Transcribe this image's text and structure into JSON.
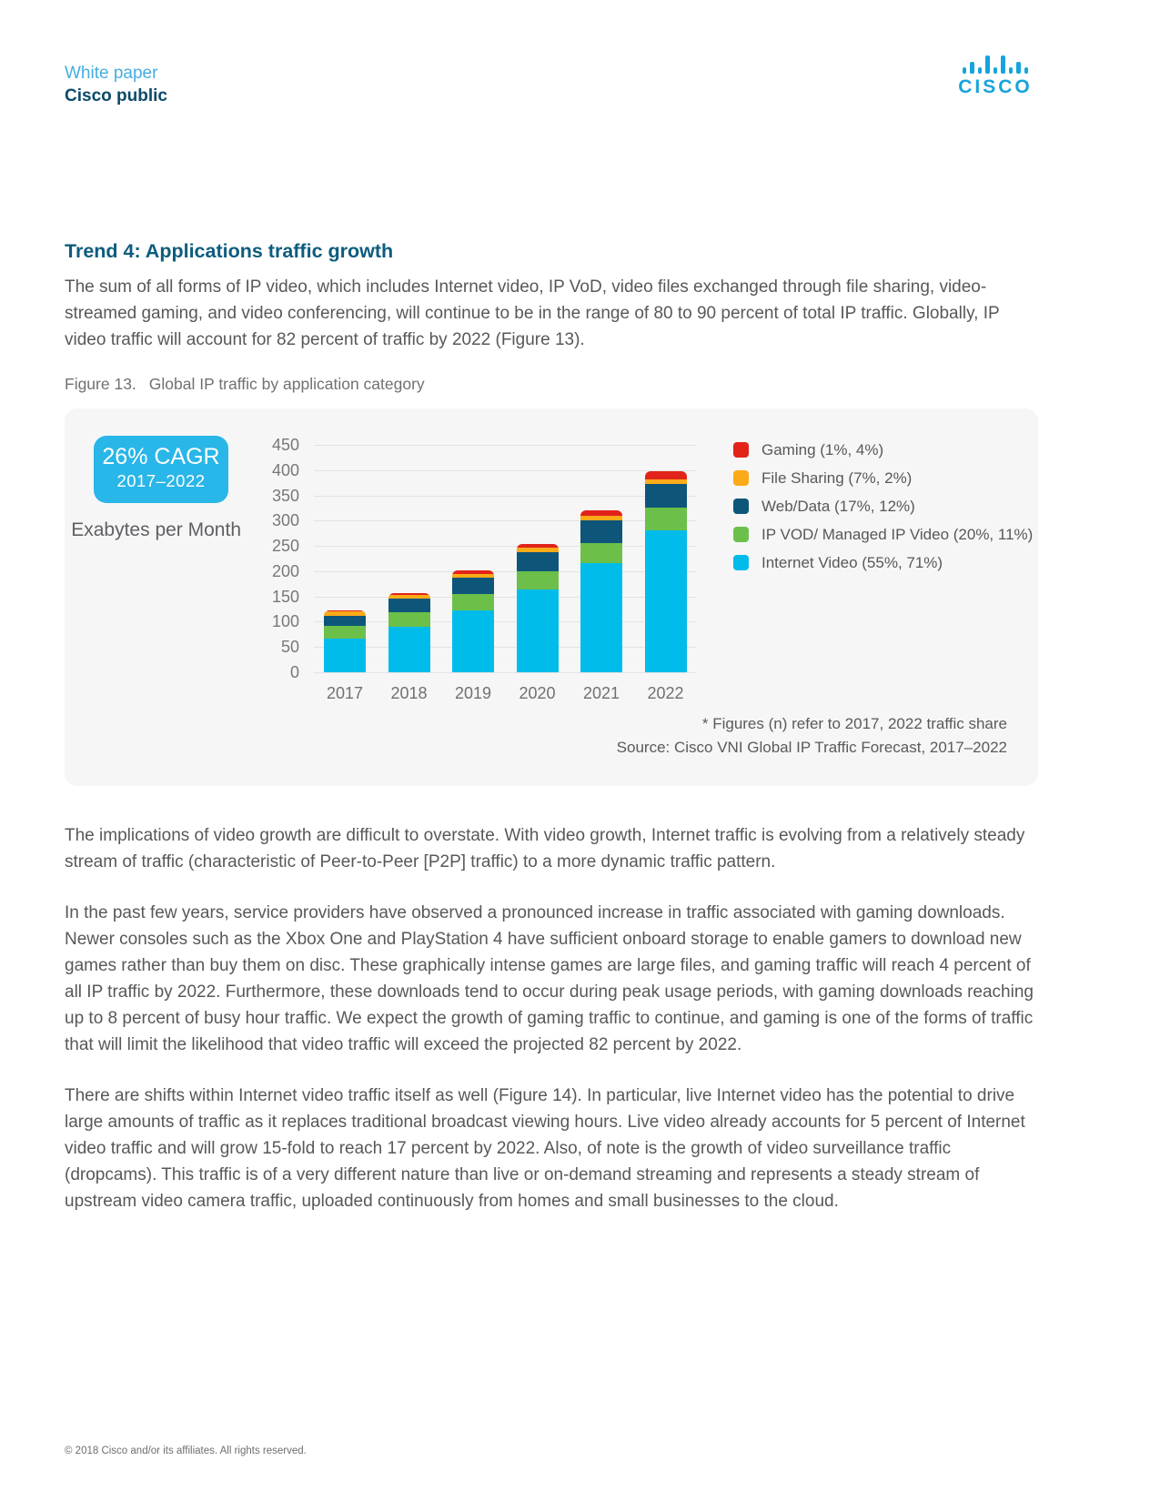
{
  "header": {
    "doc_type": "White paper",
    "classification": "Cisco public",
    "logo_text": "cisco"
  },
  "section": {
    "title": "Trend 4: Applications traffic growth",
    "intro": "The sum of all forms of IP video, which includes Internet video, IP VoD, video files exchanged through file sharing, video-streamed gaming, and video conferencing, will continue to be in the range of 80 to 90 percent of total IP traffic. Globally, IP video traffic will account for 82 percent of traffic by 2022 (Figure 13).",
    "figure_label": "Figure 13.",
    "figure_title": "Global IP traffic by application category"
  },
  "chart_data": {
    "type": "bar",
    "stacked": true,
    "title": "Global IP traffic by application category",
    "ylabel": "Exabytes per Month",
    "ylim": [
      0,
      450
    ],
    "ytick_step": 50,
    "grid": true,
    "legend_position": "right",
    "categories": [
      "2017",
      "2018",
      "2019",
      "2020",
      "2021",
      "2022"
    ],
    "series": [
      {
        "key": "internet-video",
        "name": "Internet Video (55%, 71%)",
        "color": "#00bceb",
        "values": [
          67,
          90,
          122,
          163,
          215,
          281
        ]
      },
      {
        "key": "ip-vod",
        "name": "IP VOD/ Managed IP Video (20%, 11%)",
        "color": "#6cc04a",
        "values": [
          24,
          28,
          33,
          37,
          40,
          44
        ]
      },
      {
        "key": "web-data",
        "name": "Web/Data (17%, 12%)",
        "color": "#0d567a",
        "values": [
          21,
          27,
          32,
          38,
          45,
          48
        ]
      },
      {
        "key": "file-sharing",
        "name": "File Sharing (7%, 2%)",
        "color": "#fbab18",
        "values": [
          8,
          8,
          8,
          8,
          9,
          8
        ]
      },
      {
        "key": "gaming",
        "name": "Gaming (1%, 4%)",
        "color": "#e2231a",
        "values": [
          2,
          3,
          6,
          8,
          11,
          16
        ]
      }
    ],
    "legend": [
      {
        "label": "Gaming (1%, 4%)",
        "color": "#e2231a"
      },
      {
        "label": "File Sharing (7%, 2%)",
        "color": "#fbab18"
      },
      {
        "label": "Web/Data (17%, 12%)",
        "color": "#0d567a"
      },
      {
        "label": "IP VOD/ Managed IP Video (20%, 11%)",
        "color": "#6cc04a"
      },
      {
        "label": "Internet Video (55%, 71%)",
        "color": "#00bceb"
      }
    ],
    "badge": {
      "line1": "26% CAGR",
      "line2": "2017–2022",
      "color": "#29b6e8"
    },
    "footnote": "* Figures (n) refer to 2017, 2022 traffic share",
    "source": "Source: Cisco VNI Global IP Traffic Forecast, 2017–2022"
  },
  "paragraphs": [
    "The implications of video growth are difficult to overstate. With video growth, Internet traffic is evolving from a relatively steady stream of traffic (characteristic of Peer-to-Peer [P2P] traffic) to a more dynamic traffic pattern.",
    "In the past few years, service providers have observed a pronounced increase in traffic associated with gaming downloads. Newer consoles such as the Xbox One and PlayStation 4 have sufficient onboard storage to enable gamers to download new games rather than buy them on disc. These graphically intense games are large files, and gaming traffic will reach 4 percent of all IP traffic by 2022. Furthermore, these downloads tend to occur during peak usage periods, with gaming downloads reaching up to 8 percent of busy hour traffic. We expect the growth of gaming traffic to continue, and gaming is one of the forms of traffic that will limit the likelihood that video traffic will exceed the projected 82 percent by 2022.",
    "There are shifts within Internet video traffic itself as well (Figure 14). In particular, live Internet video has the potential to drive large amounts of traffic as it replaces traditional broadcast viewing hours. Live video already accounts for 5 percent of Internet video traffic and will grow 15-fold to reach 17 percent by 2022. Also, of note is the growth of video surveillance traffic (dropcams). This traffic is of a very different nature than live or on-demand streaming and represents a steady stream of upstream video camera traffic, uploaded continuously from homes and small businesses to the cloud."
  ],
  "footer": {
    "copyright": "© 2018 Cisco and/or its affiliates. All rights reserved."
  }
}
